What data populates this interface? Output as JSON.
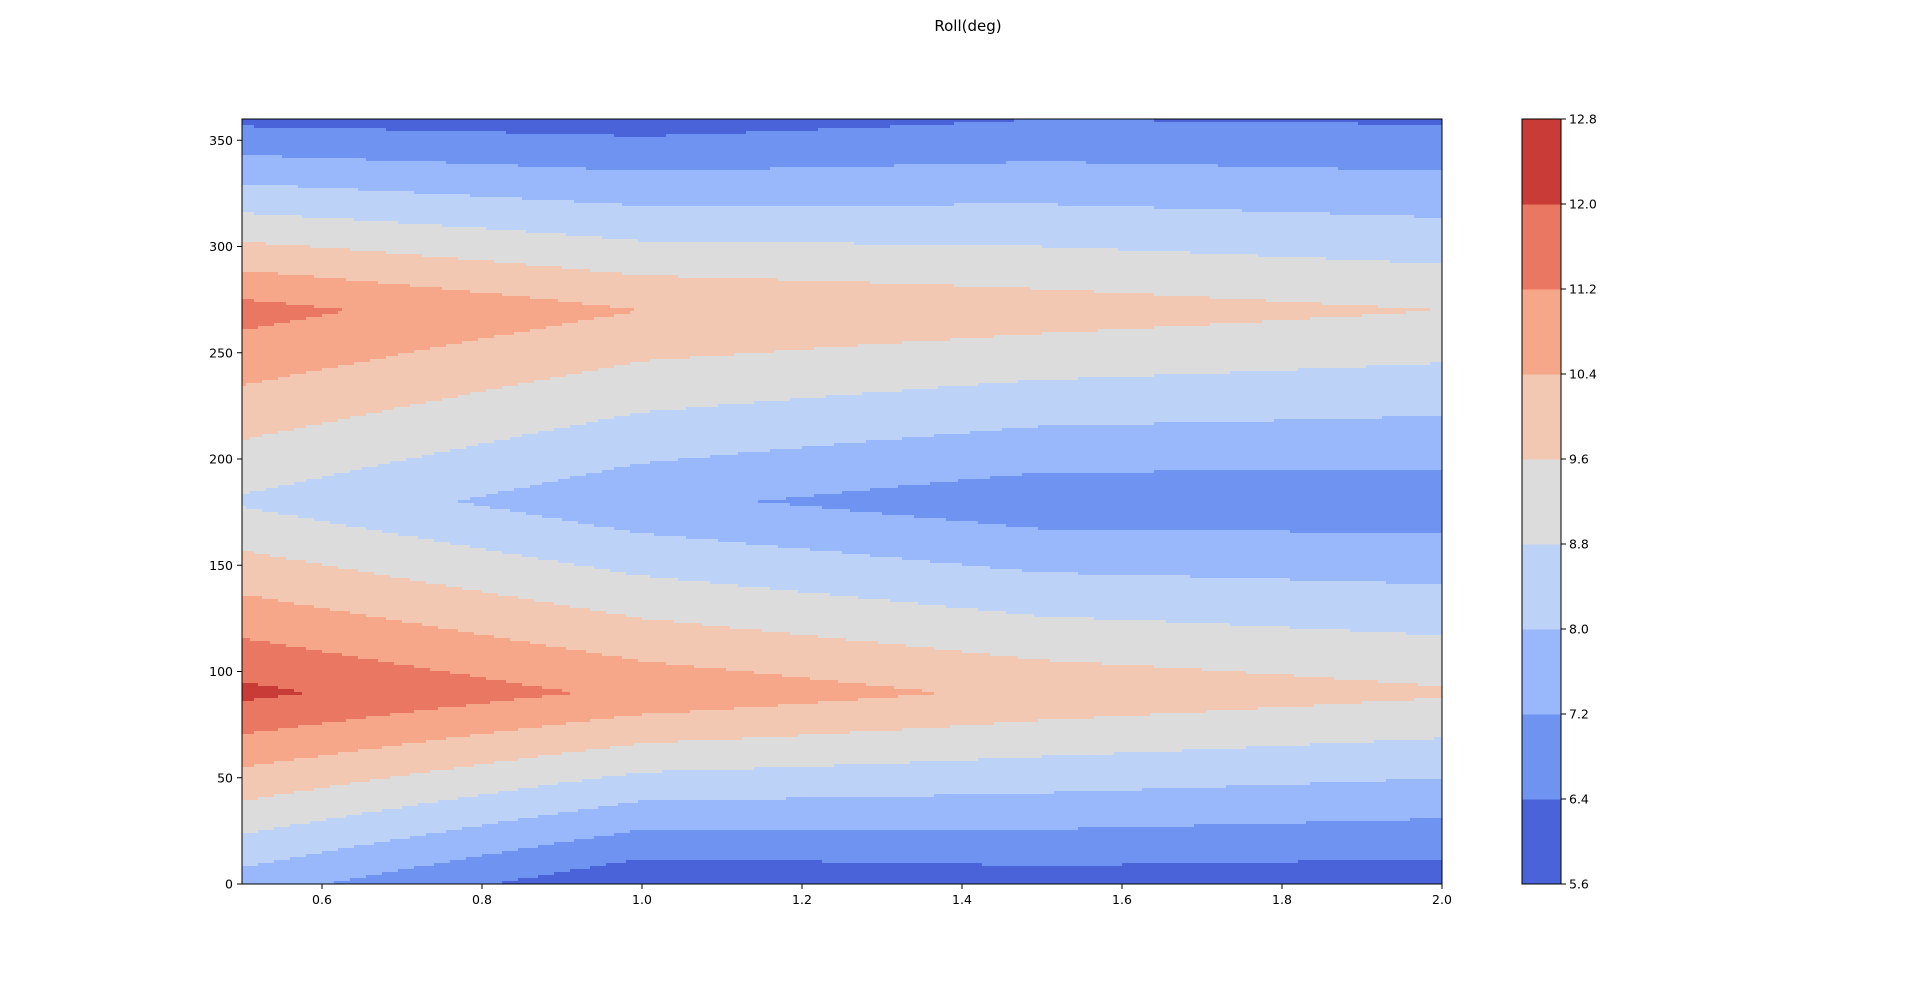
{
  "chart_data": {
    "type": "contour",
    "title": "Roll(deg)",
    "xlabel": "",
    "ylabel": "",
    "xlim": [
      0.5,
      2.0
    ],
    "ylim": [
      0,
      360
    ],
    "xticks": [
      "0.6",
      "0.8",
      "1.0",
      "1.2",
      "1.4",
      "1.6",
      "1.8",
      "2.0"
    ],
    "yticks": [
      "0",
      "50",
      "100",
      "150",
      "200",
      "250",
      "300",
      "350"
    ],
    "grid": false,
    "colormap": "coolwarm",
    "x": [
      0.5,
      1.0,
      1.5,
      2.0
    ],
    "y": [
      0,
      90,
      180,
      270,
      360
    ],
    "z": [
      [
        7.6,
        5.7,
        6.0,
        5.9
      ],
      [
        12.2,
        11.0,
        10.2,
        9.7
      ],
      [
        8.7,
        7.4,
        6.7,
        6.7
      ],
      [
        11.5,
        10.4,
        10.0,
        9.6
      ],
      [
        6.2,
        6.0,
        6.4,
        6.3
      ]
    ],
    "colorbar": {
      "levels": [
        5.6,
        6.4,
        7.2,
        8.0,
        8.8,
        9.6,
        10.4,
        11.2,
        12.0,
        12.8
      ],
      "tick_labels": [
        "5.6",
        "6.4",
        "7.2",
        "8.0",
        "8.8",
        "9.6",
        "10.4",
        "11.2",
        "12.0",
        "12.8"
      ],
      "colors": [
        "#4a63d9",
        "#6f93f1",
        "#98b8fb",
        "#bdd2f7",
        "#dddcdc",
        "#f2c8b2",
        "#f6a789",
        "#e97762",
        "#c83b36"
      ]
    }
  }
}
